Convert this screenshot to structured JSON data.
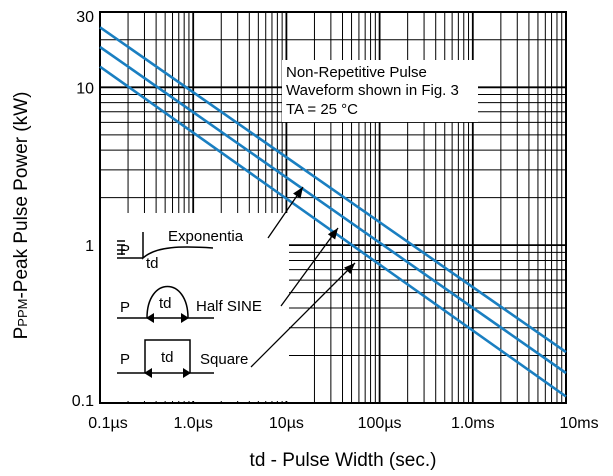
{
  "chart_data": {
    "type": "line",
    "title": "",
    "xlabel": "td - Pulse Width (sec.)",
    "ylabel_main": "P",
    "ylabel_sub": "PPM",
    "ylabel_rest": "-Peak Pulse Power (kW)",
    "x_scale": "log",
    "y_scale": "log",
    "xlim": [
      1e-07,
      0.01
    ],
    "ylim": [
      0.1,
      30
    ],
    "x_ticks": [
      {
        "value": 1e-07,
        "label": "0.1µs"
      },
      {
        "value": 1e-06,
        "label": "1.0µs"
      },
      {
        "value": 1e-05,
        "label": "10µs"
      },
      {
        "value": 0.0001,
        "label": "100µs"
      },
      {
        "value": 0.001,
        "label": "1.0ms"
      },
      {
        "value": 0.01,
        "label": "10ms"
      }
    ],
    "y_ticks": [
      {
        "value": 0.1,
        "label": "0.1"
      },
      {
        "value": 1,
        "label": "1"
      },
      {
        "value": 10,
        "label": "10"
      },
      {
        "value": 30,
        "label": "30"
      }
    ],
    "grid": true,
    "line_color": "#1a7fc1",
    "series": [
      {
        "name": "Exponentia",
        "x": [
          1e-07,
          0.01
        ],
        "y": [
          24,
          0.21
        ]
      },
      {
        "name": "Half SINE",
        "x": [
          1e-07,
          0.01
        ],
        "y": [
          18,
          0.155
        ]
      },
      {
        "name": "Square",
        "x": [
          1e-07,
          0.01
        ],
        "y": [
          13.5,
          0.11
        ]
      }
    ],
    "annotation_lines": [
      "Non-Repetitive Pulse",
      "Waveform shown in Fig. 3",
      "TA = 25 °C"
    ],
    "inset": {
      "labels": [
        "Exponentia",
        "Half SINE",
        "Square"
      ],
      "p_label": "P",
      "td_label": "td"
    }
  }
}
